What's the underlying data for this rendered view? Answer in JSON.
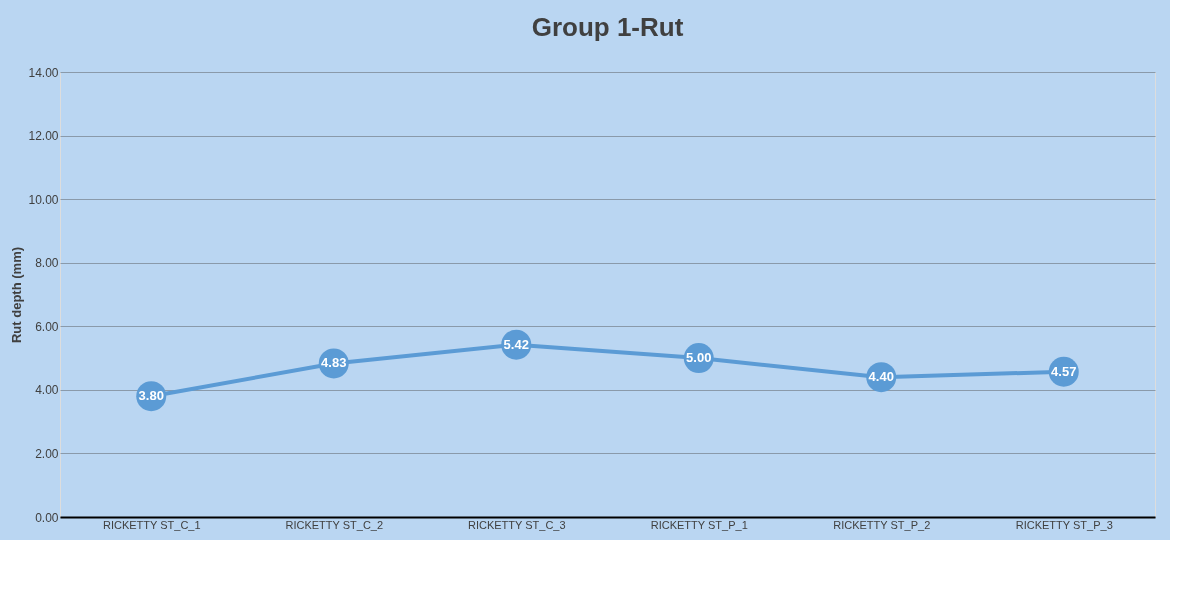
{
  "chart_data": {
    "type": "line",
    "title": "Group 1-Rut",
    "ylabel": "Rut depth (mm)",
    "categories": [
      "RICKETTY ST_C_1",
      "RICKETTY ST_C_2",
      "RICKETTY ST_C_3",
      "RICKETTY ST_P_1",
      "RICKETTY ST_P_2",
      "RICKETTY ST_P_3"
    ],
    "series": [
      {
        "color": "#5b9bd5",
        "values": [
          3.8,
          4.83,
          5.42,
          5.0,
          4.4,
          4.57
        ],
        "value_labels": [
          "3.80",
          "4.83",
          "5.42",
          "5.00",
          "4.40",
          "4.57"
        ]
      }
    ],
    "ylim": [
      0,
      14
    ],
    "yticks": [
      {
        "value": 0,
        "label": "0.00"
      },
      {
        "value": 2,
        "label": "2.00"
      },
      {
        "value": 4,
        "label": "4.00"
      },
      {
        "value": 6,
        "label": "6.00"
      },
      {
        "value": 8,
        "label": "8.00"
      },
      {
        "value": 10,
        "label": "10.00"
      },
      {
        "value": 12,
        "label": "12.00"
      },
      {
        "value": 14,
        "label": "14.00"
      }
    ],
    "grid": "y",
    "marker": "circle",
    "line_style": "solid"
  }
}
